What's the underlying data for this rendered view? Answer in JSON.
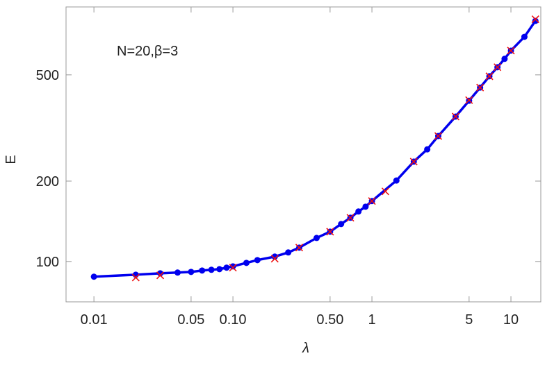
{
  "chart_data": {
    "type": "line",
    "x_label": "λ",
    "y_label": "E",
    "annotation": "N=20,β=3",
    "xscale": "log",
    "yscale": "log",
    "xlim": [
      0.0063,
      16.4
    ],
    "ylim": [
      70.6,
      898
    ],
    "xticks": [
      0.01,
      0.05,
      {
        "value": 0.1,
        "label": "0.10"
      },
      {
        "value": 0.5,
        "label": "0.50"
      },
      1,
      5,
      10
    ],
    "yticks": [
      100,
      200,
      500
    ],
    "series": [
      {
        "color": "#0000ee",
        "marker": "dot",
        "x": [
          0.01,
          0.02,
          0.03,
          0.04,
          0.05,
          0.06,
          0.07,
          0.08,
          0.09,
          0.1,
          0.125,
          0.15,
          0.2,
          0.25,
          0.3,
          0.4,
          0.5,
          0.6,
          0.7,
          0.8,
          0.9,
          1,
          1.5,
          2,
          2.5,
          3,
          4,
          5,
          6,
          7,
          8,
          9,
          10,
          12.5,
          15
        ],
        "values": [
          87.7,
          89.2,
          90.3,
          90.9,
          91.4,
          92.5,
          93.1,
          93.6,
          94.8,
          95.9,
          98.8,
          101.2,
          104.3,
          108.1,
          112.7,
          122.5,
          129.3,
          138.1,
          145.8,
          153.9,
          160.4,
          168.4,
          201,
          236.6,
          263,
          295,
          349,
          400,
          448,
          494,
          534,
          574,
          616,
          694,
          796
        ]
      },
      {
        "color": "#ee1111",
        "marker": "cross",
        "x": [
          0.02,
          0.03,
          0.1,
          0.2,
          0.3,
          0.5,
          0.7,
          1,
          1.25,
          2,
          3,
          4,
          5,
          6,
          7,
          8,
          10,
          15
        ],
        "values": [
          87.1,
          88.7,
          94.8,
          102.4,
          112.7,
          129.3,
          145.8,
          168.4,
          183,
          236.6,
          295,
          349,
          402,
          448,
          494,
          534,
          616,
          808
        ]
      }
    ]
  }
}
